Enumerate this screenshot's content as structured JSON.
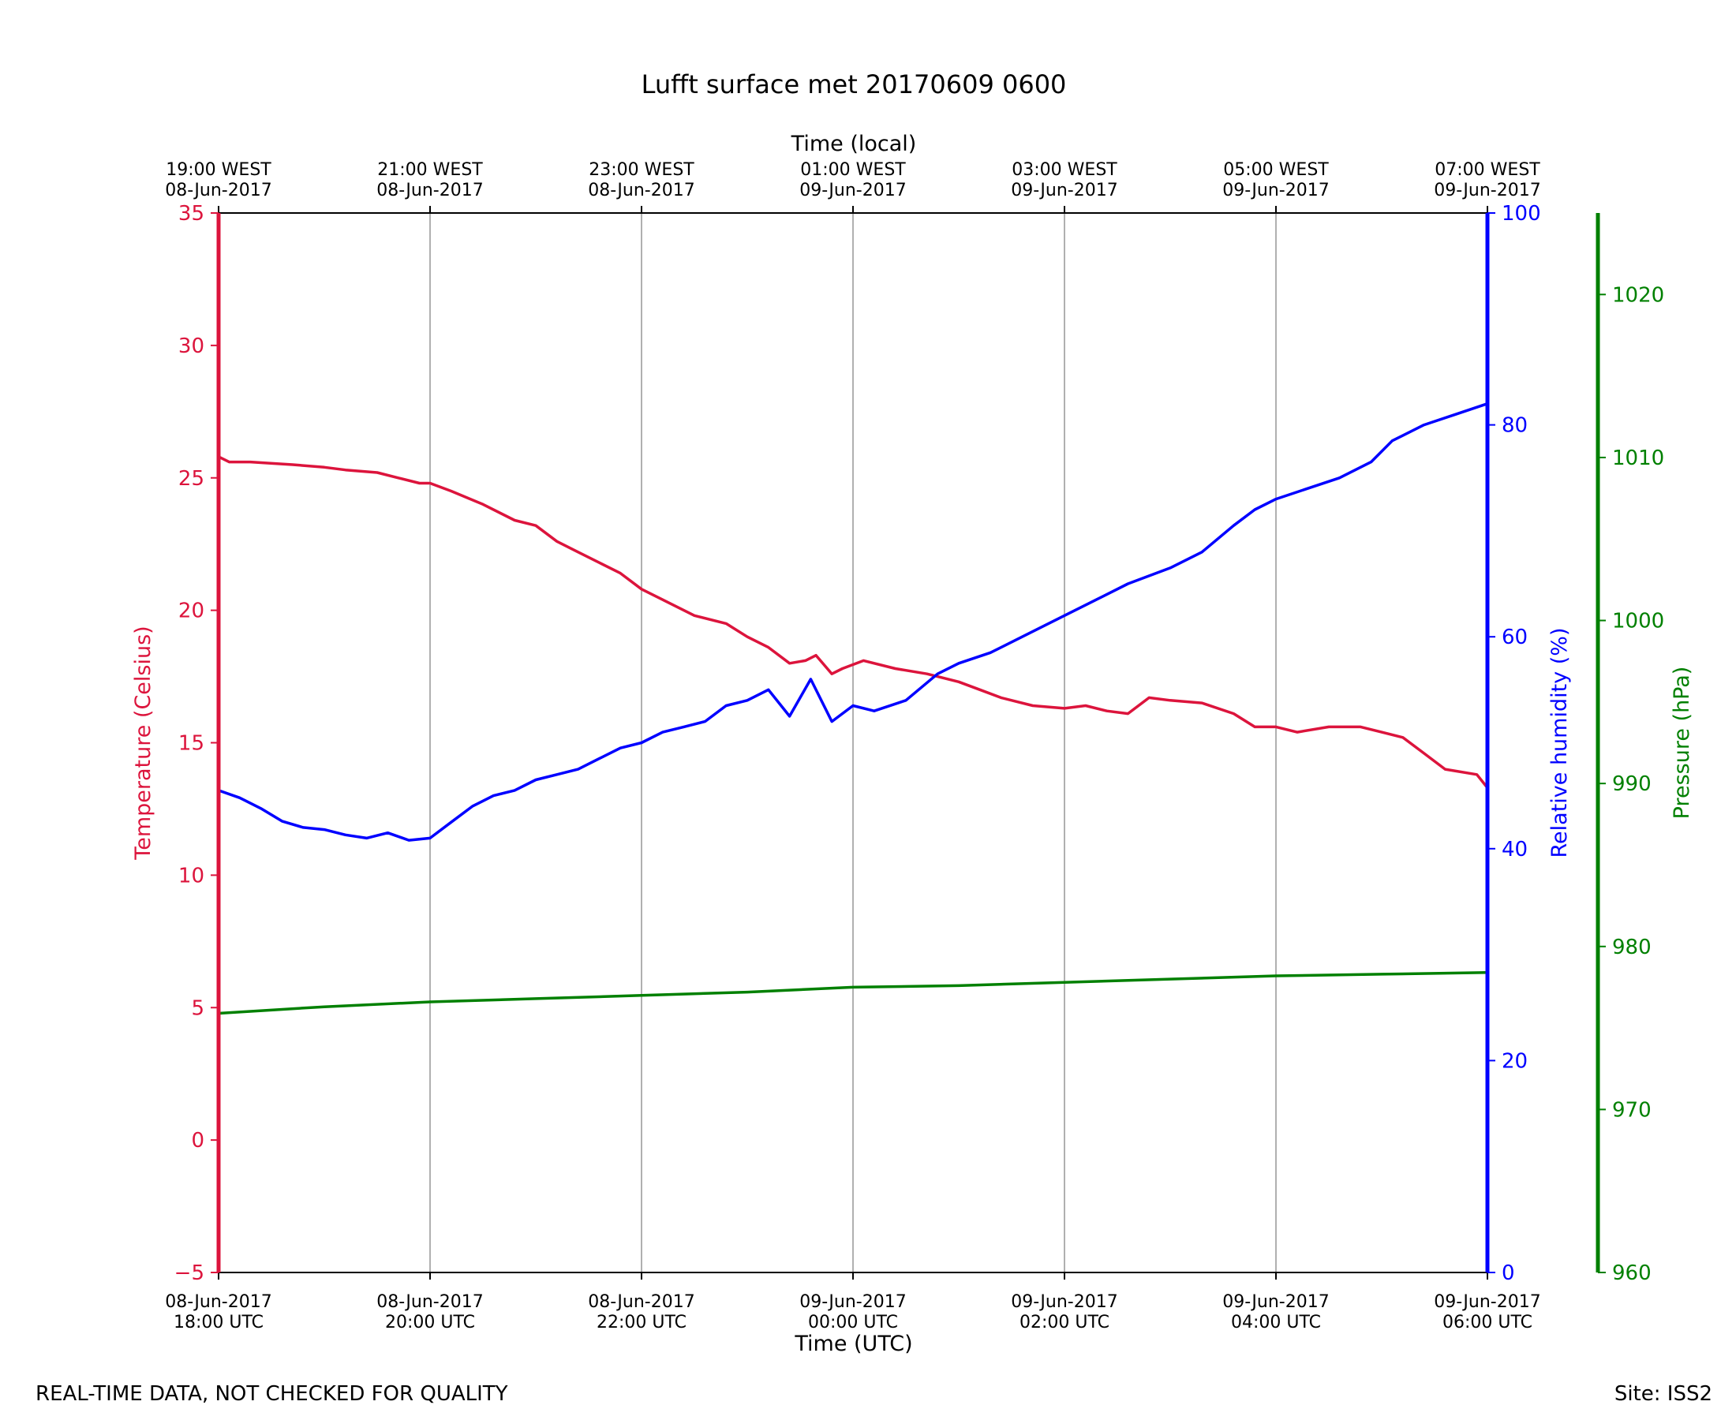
{
  "chart_data": {
    "type": "line",
    "title": "Lufft surface met 20170609 0600",
    "xlabel": "Time (UTC)",
    "x2label": "Time (local)",
    "xlim_hours": [
      0,
      12
    ],
    "x_ticks": [
      {
        "hour": 0,
        "utc": [
          "08-Jun-2017",
          "18:00 UTC"
        ],
        "local": [
          "19:00 WEST",
          "08-Jun-2017"
        ]
      },
      {
        "hour": 2,
        "utc": [
          "08-Jun-2017",
          "20:00 UTC"
        ],
        "local": [
          "21:00 WEST",
          "08-Jun-2017"
        ]
      },
      {
        "hour": 4,
        "utc": [
          "08-Jun-2017",
          "22:00 UTC"
        ],
        "local": [
          "23:00 WEST",
          "08-Jun-2017"
        ]
      },
      {
        "hour": 6,
        "utc": [
          "09-Jun-2017",
          "00:00 UTC"
        ],
        "local": [
          "01:00 WEST",
          "09-Jun-2017"
        ]
      },
      {
        "hour": 8,
        "utc": [
          "09-Jun-2017",
          "02:00 UTC"
        ],
        "local": [
          "03:00 WEST",
          "09-Jun-2017"
        ]
      },
      {
        "hour": 10,
        "utc": [
          "09-Jun-2017",
          "04:00 UTC"
        ],
        "local": [
          "05:00 WEST",
          "09-Jun-2017"
        ]
      },
      {
        "hour": 12,
        "utc": [
          "09-Jun-2017",
          "06:00 UTC"
        ],
        "local": [
          "07:00 WEST",
          "09-Jun-2017"
        ]
      }
    ],
    "axes": {
      "temperature": {
        "label": "Temperature (Celsius)",
        "color": "#dc143c",
        "ylim": [
          -5,
          35
        ],
        "ticks": [
          -5,
          0,
          5,
          10,
          15,
          20,
          25,
          30,
          35
        ]
      },
      "humidity": {
        "label": "Relative humidity (%)",
        "color": "#0000ff",
        "ylim": [
          0,
          100
        ],
        "ticks": [
          0,
          20,
          40,
          60,
          80,
          100
        ]
      },
      "pressure": {
        "label": "Pressure (hPa)",
        "color": "#008000",
        "ylim": [
          960,
          1025
        ],
        "ticks": [
          960,
          970,
          980,
          990,
          1000,
          1010,
          1020
        ]
      }
    },
    "grid": "vertical",
    "series": [
      {
        "name": "Temperature",
        "axis": "temperature",
        "points": [
          [
            0,
            25.8
          ],
          [
            0.1,
            25.6
          ],
          [
            0.3,
            25.6
          ],
          [
            0.7,
            25.5
          ],
          [
            1.0,
            25.4
          ],
          [
            1.2,
            25.3
          ],
          [
            1.5,
            25.2
          ],
          [
            1.7,
            25.0
          ],
          [
            1.9,
            24.8
          ],
          [
            2.0,
            24.8
          ],
          [
            2.2,
            24.5
          ],
          [
            2.5,
            24.0
          ],
          [
            2.8,
            23.4
          ],
          [
            3.0,
            23.2
          ],
          [
            3.2,
            22.6
          ],
          [
            3.4,
            22.2
          ],
          [
            3.6,
            21.8
          ],
          [
            3.8,
            21.4
          ],
          [
            4.0,
            20.8
          ],
          [
            4.2,
            20.4
          ],
          [
            4.5,
            19.8
          ],
          [
            4.8,
            19.5
          ],
          [
            5.0,
            19.0
          ],
          [
            5.2,
            18.6
          ],
          [
            5.4,
            18.0
          ],
          [
            5.55,
            18.1
          ],
          [
            5.65,
            18.3
          ],
          [
            5.8,
            17.6
          ],
          [
            5.9,
            17.8
          ],
          [
            6.1,
            18.1
          ],
          [
            6.4,
            17.8
          ],
          [
            6.7,
            17.6
          ],
          [
            7.0,
            17.3
          ],
          [
            7.2,
            17.0
          ],
          [
            7.4,
            16.7
          ],
          [
            7.7,
            16.4
          ],
          [
            8.0,
            16.3
          ],
          [
            8.2,
            16.4
          ],
          [
            8.4,
            16.2
          ],
          [
            8.6,
            16.1
          ],
          [
            8.8,
            16.7
          ],
          [
            9.0,
            16.6
          ],
          [
            9.3,
            16.5
          ],
          [
            9.6,
            16.1
          ],
          [
            9.8,
            15.6
          ],
          [
            10.0,
            15.6
          ],
          [
            10.2,
            15.4
          ],
          [
            10.5,
            15.6
          ],
          [
            10.8,
            15.6
          ],
          [
            11.0,
            15.4
          ],
          [
            11.2,
            15.2
          ],
          [
            11.4,
            14.6
          ],
          [
            11.6,
            14.0
          ],
          [
            11.9,
            13.8
          ],
          [
            12.0,
            13.3
          ]
        ]
      },
      {
        "name": "Relative humidity",
        "axis": "humidity",
        "points": [
          [
            0,
            45.5
          ],
          [
            0.2,
            44.8
          ],
          [
            0.4,
            43.8
          ],
          [
            0.6,
            42.6
          ],
          [
            0.8,
            42.0
          ],
          [
            1.0,
            41.8
          ],
          [
            1.2,
            41.3
          ],
          [
            1.4,
            41.0
          ],
          [
            1.6,
            41.5
          ],
          [
            1.8,
            40.8
          ],
          [
            2.0,
            41.0
          ],
          [
            2.2,
            42.5
          ],
          [
            2.4,
            44.0
          ],
          [
            2.6,
            45.0
          ],
          [
            2.8,
            45.5
          ],
          [
            3.0,
            46.5
          ],
          [
            3.2,
            47.0
          ],
          [
            3.4,
            47.5
          ],
          [
            3.6,
            48.5
          ],
          [
            3.8,
            49.5
          ],
          [
            4.0,
            50.0
          ],
          [
            4.2,
            51.0
          ],
          [
            4.4,
            51.5
          ],
          [
            4.6,
            52.0
          ],
          [
            4.8,
            53.5
          ],
          [
            5.0,
            54.0
          ],
          [
            5.2,
            55.0
          ],
          [
            5.4,
            52.5
          ],
          [
            5.6,
            56.0
          ],
          [
            5.8,
            52.0
          ],
          [
            6.0,
            53.5
          ],
          [
            6.2,
            53.0
          ],
          [
            6.5,
            54.0
          ],
          [
            6.8,
            56.5
          ],
          [
            7.0,
            57.5
          ],
          [
            7.3,
            58.5
          ],
          [
            7.6,
            60.0
          ],
          [
            8.0,
            62.0
          ],
          [
            8.3,
            63.5
          ],
          [
            8.6,
            65.0
          ],
          [
            9.0,
            66.5
          ],
          [
            9.3,
            68.0
          ],
          [
            9.6,
            70.5
          ],
          [
            9.8,
            72.0
          ],
          [
            10.0,
            73.0
          ],
          [
            10.3,
            74.0
          ],
          [
            10.6,
            75.0
          ],
          [
            10.9,
            76.5
          ],
          [
            11.1,
            78.5
          ],
          [
            11.4,
            80.0
          ],
          [
            11.7,
            81.0
          ],
          [
            12.0,
            82.0
          ]
        ]
      },
      {
        "name": "Pressure",
        "axis": "pressure",
        "points": [
          [
            0,
            975.9
          ],
          [
            1,
            976.3
          ],
          [
            2,
            976.6
          ],
          [
            3,
            976.8
          ],
          [
            4,
            977.0
          ],
          [
            5,
            977.2
          ],
          [
            6,
            977.5
          ],
          [
            7,
            977.6
          ],
          [
            8,
            977.8
          ],
          [
            9,
            978.0
          ],
          [
            10,
            978.2
          ],
          [
            11,
            978.3
          ],
          [
            12,
            978.4
          ]
        ]
      }
    ]
  },
  "footer": {
    "left": "REAL-TIME DATA, NOT CHECKED FOR QUALITY",
    "right": "Site: ISS2"
  }
}
